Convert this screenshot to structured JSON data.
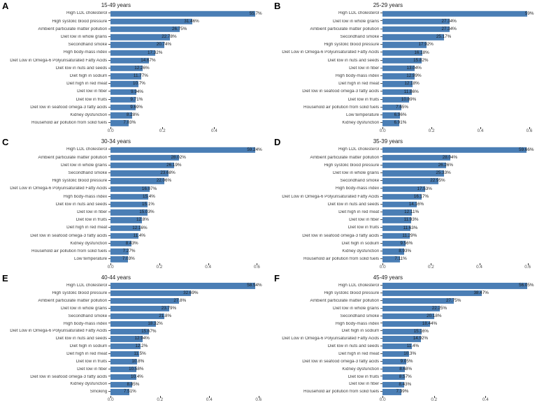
{
  "figure": {
    "bar_color": "#4a7eb5",
    "text_color": "#3d3d3d",
    "background": "#ffffff"
  },
  "chart_data": [
    {
      "panel": "A",
      "type": "bar",
      "orientation": "horizontal",
      "title": "15-49 years",
      "xlabel": "",
      "ylabel": "",
      "grid": false,
      "legend": false,
      "categories": [
        "High LDL cholesterol",
        "High systolic blood pressure",
        "Ambient particulate matter pollution",
        "Diet low in whole grains",
        "Secondhand smoke",
        "High body-mass index",
        "Diet Low in Omega-6 Polyunsaturated Fatty Acids",
        "Diet low in nuts and seeds",
        "Diet high in sodium",
        "Diet high in red meat",
        "Diet low in fiber",
        "Diet low in fruits",
        "Diet low in seafood omega-3 fatty acids",
        "Kidney dysfunction",
        "Household air pollution from solid fuels"
      ],
      "values": [
        55.7,
        31.46,
        26.75,
        22.78,
        20.74,
        17.32,
        14.67,
        12.26,
        11.77,
        10.7,
        9.94,
        9.71,
        9.69,
        8.28,
        7.03
      ],
      "value_labels": [
        "55.7%",
        "31.46%",
        "26.75%",
        "22.78%",
        "20.74%",
        "17.32%",
        "14.67%",
        "12.26%",
        "11.77%",
        "10.7%",
        "9.94%",
        "9.71%",
        "9.69%",
        "8.28%",
        "7.03%"
      ],
      "xlim": [
        0,
        0.585
      ],
      "x_ticks": [
        0,
        0.2,
        0.4
      ],
      "x_tick_labels": [
        "0.0",
        "0.2",
        "0.4"
      ]
    },
    {
      "panel": "B",
      "type": "bar",
      "orientation": "horizontal",
      "title": "25-29 years",
      "xlabel": "",
      "ylabel": "",
      "grid": false,
      "legend": false,
      "categories": [
        "High LDL cholesterol",
        "Diet low in whole grains",
        "Ambient particulate matter pollution",
        "Secondhand smoke",
        "High systolic blood pressure",
        "Diet Low in Omega-6 Polyunsaturated Fatty Acids",
        "Diet low in nuts and seeds",
        "Diet low in fiber",
        "High body-mass index",
        "Diet high in red meat",
        "Diet low in seafood omega-3 fatty acids",
        "Diet low in fruits",
        "Household air pollution from solid fuels",
        "Low temperature",
        "Kidney dysfunction"
      ],
      "values": [
        59,
        27.34,
        27.34,
        25.17,
        17.92,
        16.18,
        15.82,
        13.04,
        12.99,
        12.18,
        11.86,
        10.89,
        7.65,
        6.96,
        6.91
      ],
      "value_labels": [
        "59%",
        "27.34%",
        "27.34%",
        "25.17%",
        "17.92%",
        "16.18%",
        "15.82%",
        "13.04%",
        "12.99%",
        "12.18%",
        "11.86%",
        "10.89%",
        "7.65%",
        "6.96%",
        "6.91%"
      ],
      "xlim": [
        0,
        0.62
      ],
      "x_ticks": [
        0,
        0.2,
        0.4,
        0.6
      ],
      "x_tick_labels": [
        "0.0",
        "0.2",
        "0.4",
        "0.6"
      ]
    },
    {
      "panel": "C",
      "type": "bar",
      "orientation": "horizontal",
      "title": "30-34 years",
      "xlabel": "",
      "ylabel": "",
      "grid": false,
      "legend": false,
      "categories": [
        "High LDL cholesterol",
        "Ambient particulate matter pollution",
        "Diet low in whole grains",
        "Secondhand smoke",
        "High systolic blood pressure",
        "Diet Low in Omega-6 Polyunsaturated Fatty Acids",
        "High body-mass index",
        "Diet low in nuts and seeds",
        "Diet low in fiber",
        "Diet low in fruits",
        "Diet high in red meat",
        "Diet low in seafood omega-3 fatty acids",
        "Kidney dysfunction",
        "Household air pollution from solid fuels",
        "Low temperature"
      ],
      "values": [
        59.24,
        28.02,
        26.19,
        23.68,
        22.06,
        16.07,
        15.4,
        15.1,
        15.03,
        12.8,
        12.16,
        11.4,
        8.43,
        7.27,
        7.03
      ],
      "value_labels": [
        "59.24%",
        "28.02%",
        "26.19%",
        "23.68%",
        "22.06%",
        "16.07%",
        "15.4%",
        "15.1%",
        "15.03%",
        "12.8%",
        "12.16%",
        "11.4%",
        "8.43%",
        "7.27%",
        "7.03%"
      ],
      "xlim": [
        0,
        0.622
      ],
      "x_ticks": [
        0,
        0.2,
        0.4,
        0.6
      ],
      "x_tick_labels": [
        "0.0",
        "0.2",
        "0.4",
        "0.6"
      ]
    },
    {
      "panel": "D",
      "type": "bar",
      "orientation": "horizontal",
      "title": "35-39 years",
      "xlabel": "",
      "ylabel": "",
      "grid": false,
      "legend": false,
      "categories": [
        "High LDL cholesterol",
        "Ambient particulate matter pollution",
        "High systolic blood pressure",
        "Diet low in whole grains",
        "Secondhand smoke",
        "High body-mass index",
        "Diet Low in Omega-6 Polyunsaturated Fatty Acids",
        "Diet low in nuts and seeds",
        "Diet high in red meat",
        "Diet low in fiber",
        "Diet low in fruits",
        "Diet low in seafood omega-3 fatty acids",
        "Diet high in sodium",
        "Kidney dysfunction",
        "Household air pollution from solid fuels"
      ],
      "values": [
        59.66,
        28.04,
        26.26,
        25.33,
        22.95,
        17.53,
        16.17,
        14.16,
        12.11,
        11.93,
        11.63,
        11.29,
        9.56,
        8.93,
        7.11
      ],
      "value_labels": [
        "59.66%",
        "28.04%",
        "26.26%",
        "25.33%",
        "22.95%",
        "17.53%",
        "16.17%",
        "14.16%",
        "12.11%",
        "11.93%",
        "11.63%",
        "11.29%",
        "9.56%",
        "8.93%",
        "7.11%"
      ],
      "xlim": [
        0,
        0.627
      ],
      "x_ticks": [
        0,
        0.2,
        0.4,
        0.6
      ],
      "x_tick_labels": [
        "0.0",
        "0.2",
        "0.4",
        "0.6"
      ]
    },
    {
      "panel": "E",
      "type": "bar",
      "orientation": "horizontal",
      "title": "40-44 years",
      "xlabel": "",
      "ylabel": "",
      "grid": false,
      "legend": false,
      "categories": [
        "High LDL cholesterol",
        "High systolic blood pressure",
        "Ambient particulate matter pollution",
        "Diet low in whole grains",
        "Secondhand smoke",
        "High body-mass index",
        "Diet Low in Omega-6 Polyunsaturated Fatty Acids",
        "Diet low in nuts and seeds",
        "Diet high in sodium",
        "Diet high in red meat",
        "Diet low in fruits",
        "Diet low in fiber",
        "Diet low in seafood omega-3 fatty acids",
        "Kidney dysfunction",
        "Smoking"
      ],
      "values": [
        58.54,
        32.69,
        27.8,
        23.79,
        21.8,
        18.32,
        15.67,
        12.94,
        12.2,
        11.5,
        10.8,
        10.58,
        10.4,
        8.85,
        7.51
      ],
      "value_labels": [
        "58.54%",
        "32.69%",
        "27.8%",
        "23.79%",
        "21.8%",
        "18.32%",
        "15.67%",
        "12.94%",
        "12.2%",
        "11.5%",
        "10.8%",
        "10.58%",
        "10.4%",
        "8.85%",
        "7.51%"
      ],
      "xlim": [
        0,
        0.615
      ],
      "x_ticks": [
        0,
        0.2,
        0.4,
        0.6
      ],
      "x_tick_labels": [
        "0.0",
        "0.2",
        "0.4",
        "0.6"
      ]
    },
    {
      "panel": "F",
      "type": "bar",
      "orientation": "horizontal",
      "title": "45-49 years",
      "xlabel": "",
      "ylabel": "",
      "grid": false,
      "legend": false,
      "categories": [
        "High LDL cholesterol",
        "High systolic blood pressure",
        "Ambient particulate matter pollution",
        "Diet low in whole grains",
        "Secondhand smoke",
        "High body-mass index",
        "Diet high in sodium",
        "Diet Low in Omega-6 Polyunsaturated Fatty Acids",
        "Diet low in nuts and seeds",
        "Diet high in red meat",
        "Diet low in seafood omega-3 fatty acids",
        "Kidney dysfunction",
        "Diet low in fruits",
        "Diet low in fiber",
        "Household air pollution from solid fuels"
      ],
      "values": [
        56.05,
        38.47,
        27.75,
        22.25,
        20.18,
        18.44,
        15.16,
        14.92,
        11.4,
        10.3,
        9.05,
        8.68,
        8.57,
        8.43,
        7.39
      ],
      "value_labels": [
        "56.05%",
        "38.47%",
        "27.75%",
        "22.25%",
        "20.18%",
        "18.44%",
        "15.16%",
        "14.92%",
        "11.4%",
        "10.3%",
        "9.05%",
        "8.68%",
        "8.57%",
        "8.43%",
        "7.39%"
      ],
      "xlim": [
        0,
        0.589
      ],
      "x_ticks": [
        0,
        0.2,
        0.4
      ],
      "x_tick_labels": [
        "0.0",
        "0.2",
        "0.4"
      ]
    }
  ]
}
